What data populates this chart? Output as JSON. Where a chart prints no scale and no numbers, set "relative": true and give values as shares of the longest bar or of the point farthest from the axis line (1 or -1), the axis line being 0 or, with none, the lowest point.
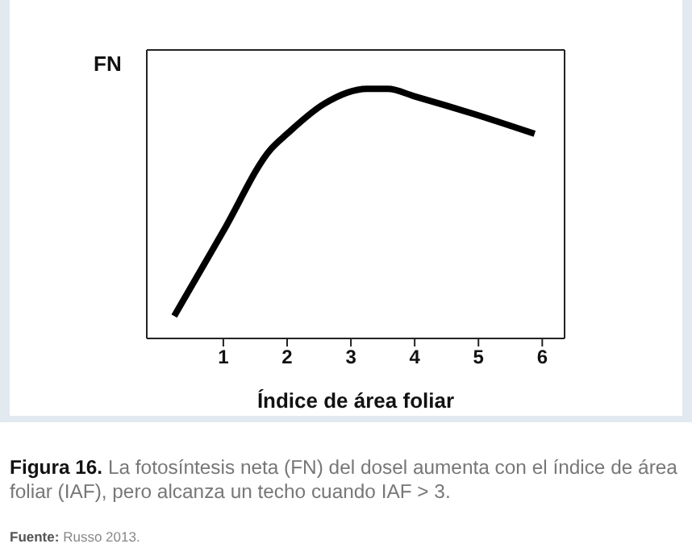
{
  "chart_data": {
    "type": "line",
    "relative": true,
    "xlabel": "Índice de área foliar",
    "ylabel": "FN",
    "xlim": [
      -0.2,
      6.35
    ],
    "xticks": [
      1,
      2,
      3,
      4,
      5,
      6
    ],
    "marker": "none",
    "line_style": "solid",
    "x": [
      0.23,
      1,
      1.75,
      2,
      2.58,
      3.25,
      3.58,
      4,
      4.92,
      5.88
    ],
    "series": [
      {
        "color": "#000000",
        "values": [
          0.09,
          0.43,
          0.76,
          0.82,
          0.94,
          1,
          1,
          0.97,
          0.9,
          0.82
        ]
      }
    ],
    "annotations": [
      "Figura 16.",
      "La fotosíntesis neta (FN) del dosel aumenta con el índice de área foliar (IAF), pero alcanza un techo cuando IAF > 3.",
      "Fuente:",
      "Russo 2013."
    ]
  }
}
